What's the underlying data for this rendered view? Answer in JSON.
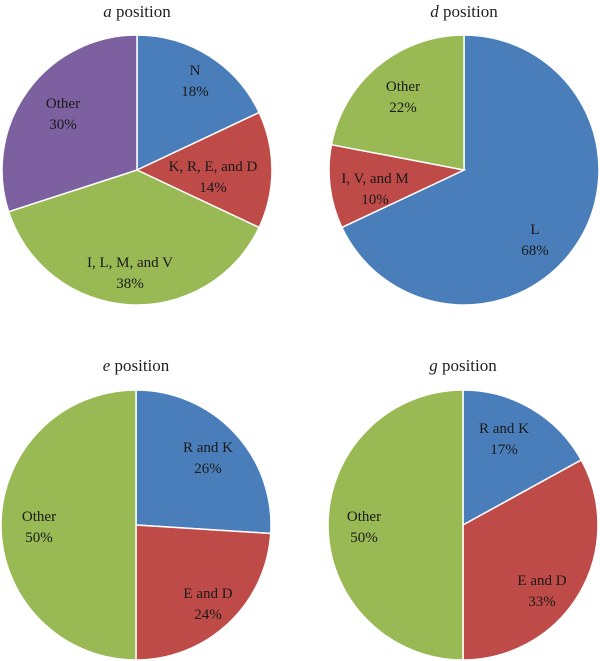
{
  "colors": {
    "blue": "#4a7ebb",
    "red": "#be4b48",
    "green": "#98b954",
    "purple": "#7d60a0"
  },
  "chart_data": [
    {
      "type": "pie",
      "title_letter": "a",
      "title_rest": " position",
      "slices": [
        {
          "lines": [
            "N",
            "18%"
          ],
          "value": 18,
          "color": "#4a7ebb"
        },
        {
          "lines": [
            "K, R, E, and D",
            "14%"
          ],
          "value": 14,
          "color": "#be4b48"
        },
        {
          "lines": [
            "I, L, M, and V",
            "38%"
          ],
          "value": 38,
          "color": "#98b954"
        },
        {
          "lines": [
            "Other",
            "30%"
          ],
          "value": 30,
          "color": "#7d60a0"
        }
      ]
    },
    {
      "type": "pie",
      "title_letter": "d",
      "title_rest": " position",
      "slices": [
        {
          "lines": [
            "L",
            "68%"
          ],
          "value": 68,
          "color": "#4a7ebb"
        },
        {
          "lines": [
            "I, V, and M",
            "10%"
          ],
          "value": 10,
          "color": "#be4b48"
        },
        {
          "lines": [
            "Other",
            "22%"
          ],
          "value": 22,
          "color": "#98b954"
        }
      ]
    },
    {
      "type": "pie",
      "title_letter": "e",
      "title_rest": " position",
      "slices": [
        {
          "lines": [
            "R and K",
            "26%"
          ],
          "value": 26,
          "color": "#4a7ebb"
        },
        {
          "lines": [
            "E and D",
            "24%"
          ],
          "value": 24,
          "color": "#be4b48"
        },
        {
          "lines": [
            "Other",
            "50%"
          ],
          "value": 50,
          "color": "#98b954"
        }
      ]
    },
    {
      "type": "pie",
      "title_letter": "g",
      "title_rest": " position",
      "slices": [
        {
          "lines": [
            "R and K",
            "17%"
          ],
          "value": 17,
          "color": "#4a7ebb"
        },
        {
          "lines": [
            "E and D",
            "33%"
          ],
          "value": 33,
          "color": "#be4b48"
        },
        {
          "lines": [
            "Other",
            "50%"
          ],
          "value": 50,
          "color": "#98b954"
        }
      ]
    }
  ]
}
